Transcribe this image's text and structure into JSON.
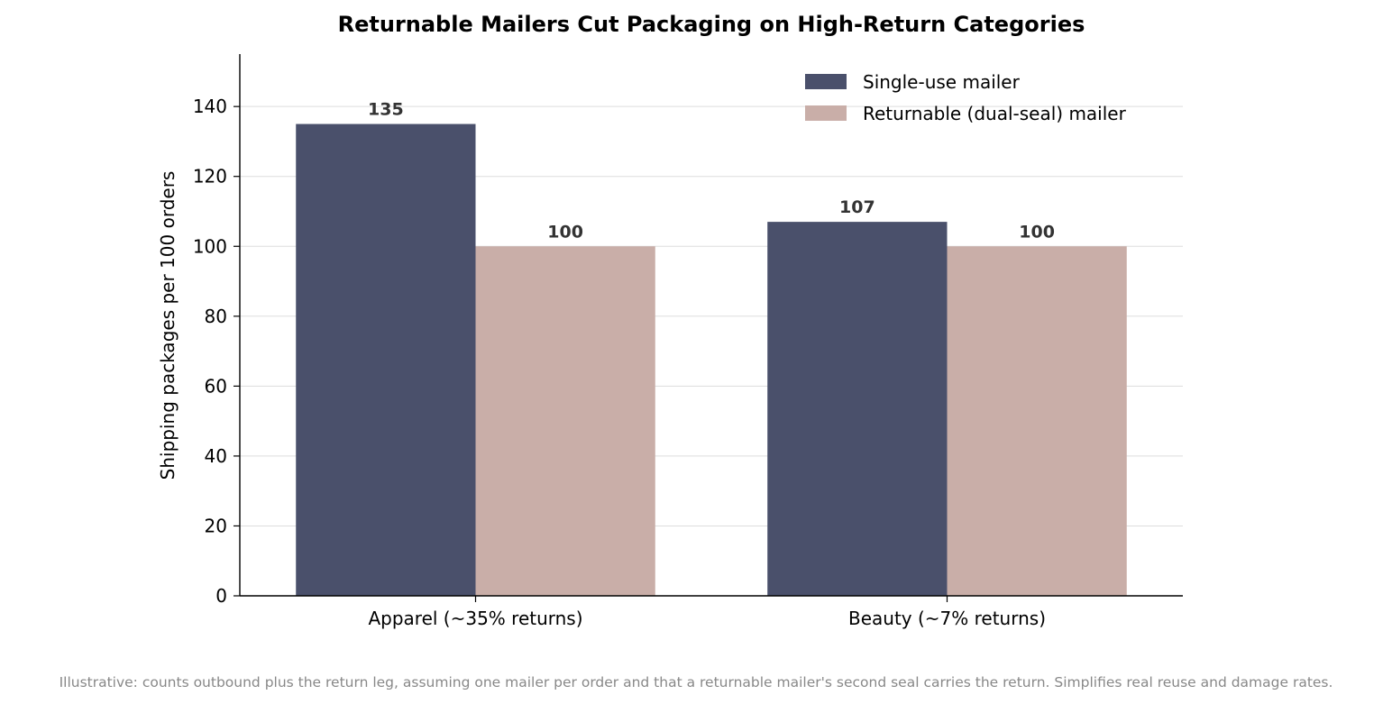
{
  "chart_data": {
    "type": "bar",
    "title": "Returnable Mailers Cut Packaging on High-Return Categories",
    "ylabel": "Shipping packages per 100 orders",
    "xlabel": "",
    "categories": [
      "Apparel (~35% returns)",
      "Beauty (~7% returns)"
    ],
    "series": [
      {
        "name": "Single-use mailer",
        "values": [
          135,
          107
        ],
        "color": "#4a506b"
      },
      {
        "name": "Returnable (dual-seal) mailer",
        "values": [
          100,
          100
        ],
        "color": "#c9aea8"
      }
    ],
    "ylim": [
      0,
      155
    ],
    "yticks": [
      0,
      20,
      40,
      60,
      80,
      100,
      120,
      140
    ],
    "grid": true,
    "legend_position": "top-right",
    "footnote": "Illustrative: counts outbound plus the return leg, assuming one mailer per order and that a returnable mailer's second seal carries the return. Simplifies real reuse and damage rates."
  }
}
